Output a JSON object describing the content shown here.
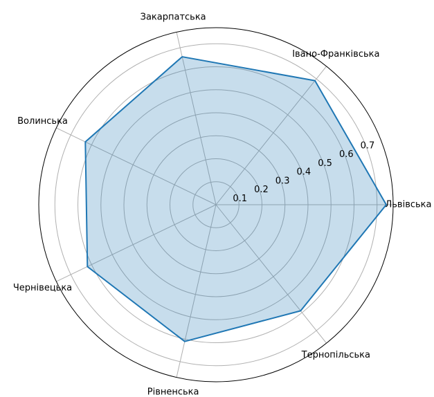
{
  "chart_data": {
    "type": "radar",
    "categories": [
      "Львівська",
      "Івано-Франківська",
      "Закарпатська",
      "Волинська",
      "Чернівецька",
      "Рівненська",
      "Тернопільська"
    ],
    "values": [
      0.74,
      0.69,
      0.66,
      0.63,
      0.62,
      0.61,
      0.59
    ],
    "color": "#1f77b4",
    "ylim": [
      0,
      0.77
    ],
    "yticks": [
      0.1,
      0.2,
      0.3,
      0.4,
      0.5,
      0.6,
      0.7
    ],
    "grid": true
  }
}
